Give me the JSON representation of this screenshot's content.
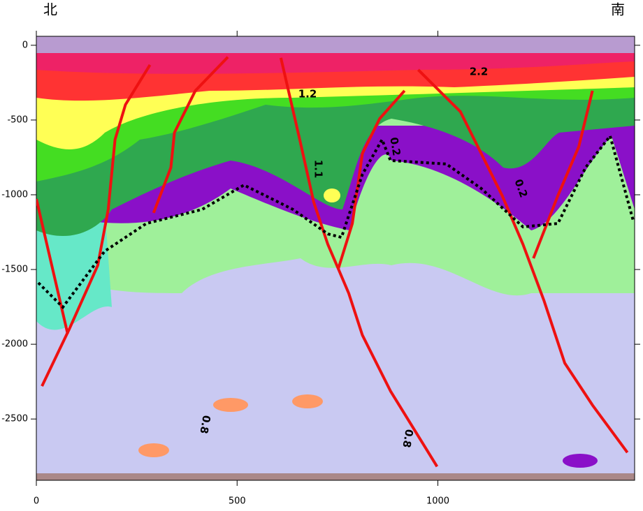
{
  "chart_data": {
    "type": "section",
    "left_label": "北",
    "right_label": "南",
    "xlim": [
      0,
      1490
    ],
    "ylim": [
      -2910,
      60
    ],
    "xticks": [
      0,
      500,
      1000
    ],
    "yticks": [
      0,
      -500,
      -1000,
      -1500,
      -2000,
      -2500
    ],
    "contour_labels": [
      "2.2",
      "0.2",
      "0.2",
      "1.1",
      "1.2",
      "0.8",
      "0.8"
    ],
    "faults": {
      "color": "#ee1111",
      "lines": [
        {
          "x": [
            0,
            78
          ],
          "y": [
            -1028,
            -1930
          ]
        },
        {
          "x": [
            14,
            83,
            153,
            179,
            196,
            222,
            283
          ],
          "y": [
            -2280,
            -1893,
            -1472,
            -1098,
            -631,
            -397,
            -131
          ]
        },
        {
          "x": [
            292,
            335,
            344,
            396,
            477
          ],
          "y": [
            -1121,
            -818,
            -584,
            -304,
            -79
          ]
        },
        {
          "x": [
            609,
            656,
            691,
            726,
            752,
            778,
            812,
            882,
            998
          ],
          "y": [
            -84,
            -631,
            -1051,
            -1332,
            -1495,
            -1659,
            -1939,
            -2313,
            -2818
          ]
        },
        {
          "x": [
            752,
            787,
            812,
            855,
            917
          ],
          "y": [
            -1495,
            -1192,
            -724,
            -491,
            -304
          ]
        },
        {
          "x": [
            951,
            1056,
            1108,
            1160,
            1212,
            1264,
            1316,
            1385,
            1472
          ],
          "y": [
            -164,
            -444,
            -724,
            -1005,
            -1332,
            -1706,
            -2126,
            -2407,
            -2724
          ]
        },
        {
          "x": [
            1238,
            1299,
            1351,
            1385
          ],
          "y": [
            -1425,
            -1005,
            -678,
            -304
          ]
        }
      ]
    },
    "boundary": {
      "color": "#000000",
      "x": [
        5,
        66,
        170,
        274,
        413,
        517,
        587,
        639,
        726,
        760,
        812,
        861,
        882,
        1021,
        1108,
        1212,
        1299,
        1368,
        1429,
        1486
      ],
      "y": [
        -1589,
        -1752,
        -1378,
        -1192,
        -1098,
        -935,
        -1028,
        -1098,
        -1262,
        -1285,
        -864,
        -631,
        -771,
        -794,
        -958,
        -1215,
        -1192,
        -818,
        -607,
        -1168
      ]
    }
  }
}
